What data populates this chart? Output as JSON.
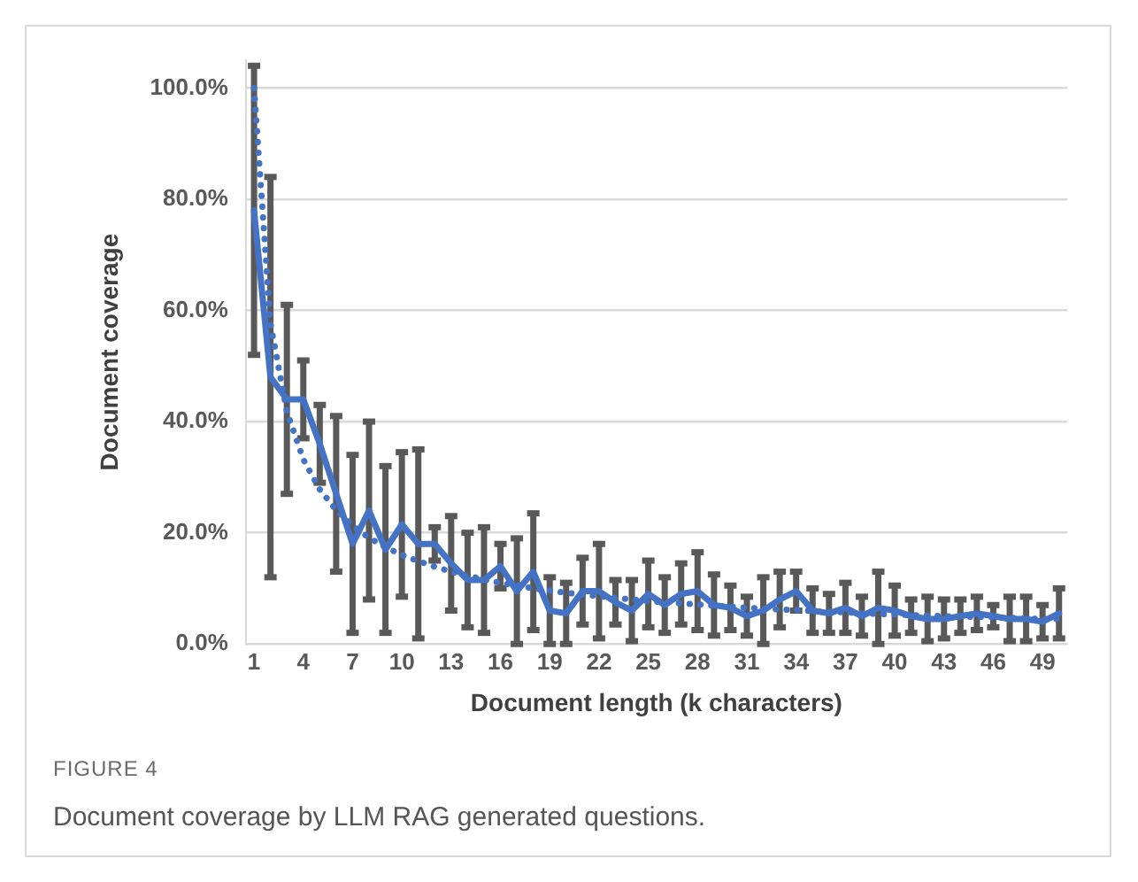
{
  "chart_data": {
    "type": "line",
    "xlabel": "Document length (k characters)",
    "ylabel": "Document coverage",
    "categories": [
      "1",
      null,
      null,
      "4",
      null,
      null,
      "7",
      null,
      null,
      "10",
      null,
      null,
      "13",
      null,
      null,
      "16",
      null,
      null,
      "19",
      null,
      null,
      "22",
      null,
      null,
      "25",
      null,
      null,
      "28",
      null,
      null,
      "31",
      null,
      null,
      "34",
      null,
      null,
      "37",
      null,
      null,
      "40",
      null,
      null,
      "43",
      null,
      null,
      "46",
      null,
      null,
      "49",
      null
    ],
    "ylim": [
      0,
      105
    ],
    "yticks": [
      {
        "value": 0,
        "label": "0.0%"
      },
      {
        "value": 20,
        "label": "20.0%"
      },
      {
        "value": 40,
        "label": "40.0%"
      },
      {
        "value": 60,
        "label": "60.0%"
      },
      {
        "value": 80,
        "label": "80.0%"
      },
      {
        "value": 100,
        "label": "100.0%"
      }
    ],
    "grid": "y",
    "legend": false,
    "marker": "none",
    "line_style": "solid",
    "series": [
      {
        "color": "#4472c4",
        "values": [
          78,
          48,
          44,
          44,
          36,
          27,
          18,
          24,
          17,
          21.5,
          18,
          18,
          14.5,
          11.5,
          11.5,
          14,
          9.5,
          13,
          6,
          5.5,
          9.5,
          9.5,
          7.5,
          6,
          9,
          7,
          9,
          9.5,
          7,
          6.5,
          5,
          6,
          8,
          9.5,
          6,
          5.5,
          6.5,
          5,
          6.5,
          6,
          5,
          4.5,
          4.5,
          5,
          5.5,
          5,
          4.5,
          4.5,
          4,
          5.5
        ],
        "errors": [
          26,
          36,
          17,
          7,
          7,
          14,
          16,
          16,
          15,
          13,
          17,
          3,
          8.5,
          8.5,
          9.5,
          4,
          9.5,
          10.5,
          6,
          5.5,
          6,
          8.5,
          4,
          5.5,
          6,
          5,
          5.5,
          7,
          5.5,
          4,
          3.5,
          6,
          5,
          3.5,
          4,
          3.5,
          4.5,
          3.5,
          6.5,
          4.5,
          3,
          4,
          3.5,
          3,
          3,
          2,
          4,
          4,
          3,
          4.5
        ]
      },
      {
        "type": "line",
        "line_style": "dotted",
        "color": "#4472c4",
        "values": [
          100,
          57.6,
          41.8,
          33.2,
          27.8,
          24.1,
          21.3,
          19.1,
          17.4,
          16,
          14.9,
          13.9,
          13,
          12.3,
          11.6,
          11,
          10.5,
          10,
          9.6,
          9.2,
          8.9,
          8.6,
          8.3,
          8,
          7.7,
          7.5,
          7.3,
          7.1,
          6.9,
          6.7,
          6.5,
          6.4,
          6.2,
          6.1,
          5.9,
          5.8,
          5.7,
          5.5,
          5.4,
          5.3,
          5.2,
          5.1,
          5,
          4.9,
          4.9,
          4.8,
          4.7,
          4.6,
          4.5,
          4.5
        ]
      }
    ],
    "annotations": [
      "FIGURE 4",
      "Document coverage by LLM RAG generated questions."
    ]
  }
}
